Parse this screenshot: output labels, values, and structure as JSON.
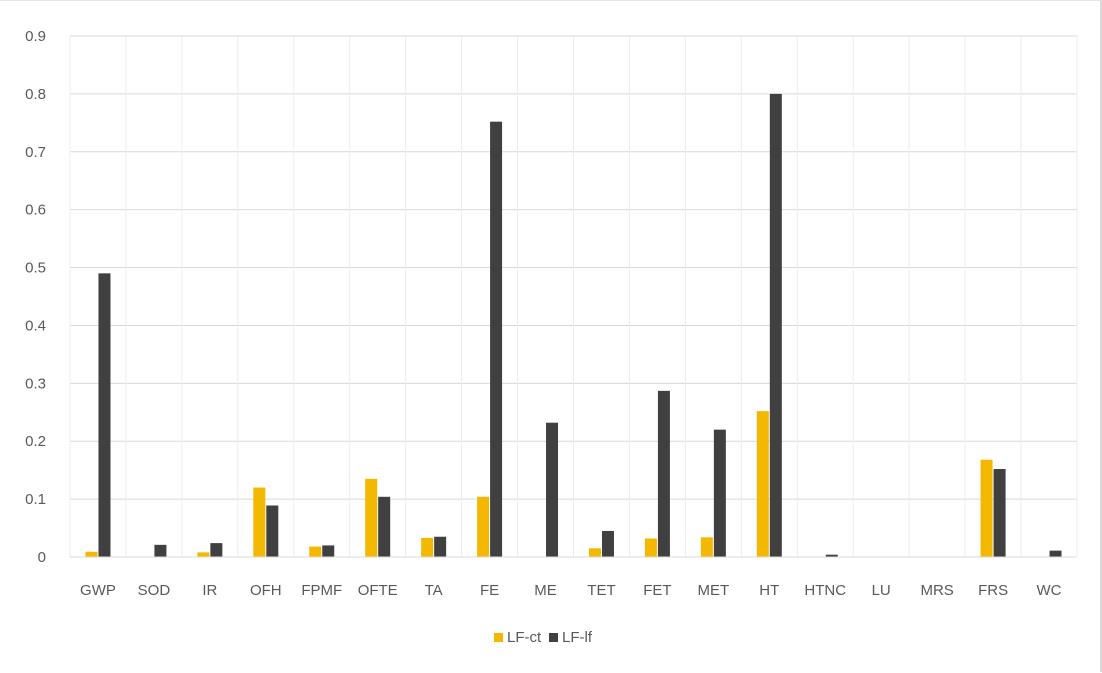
{
  "chart_data": {
    "type": "bar",
    "title": "",
    "xlabel": "",
    "ylabel": "",
    "ylim": [
      0,
      0.9
    ],
    "yticks": [
      "0",
      "0.1",
      "0.2",
      "0.3",
      "0.4",
      "0.5",
      "0.6",
      "0.7",
      "0.8",
      "0.9"
    ],
    "grid": true,
    "legend_position": "bottom",
    "categories": [
      "GWP",
      "SOD",
      "IR",
      "OFH",
      "FPMF",
      "OFTE",
      "TA",
      "FE",
      "ME",
      "TET",
      "FET",
      "MET",
      "HT",
      "HTNC",
      "LU",
      "MRS",
      "FRS",
      "WC"
    ],
    "series": [
      {
        "name": "LF-ct",
        "color": "#f5b800",
        "values": [
          0.009,
          0.0,
          0.008,
          0.12,
          0.018,
          0.135,
          0.033,
          0.104,
          0.0,
          0.015,
          0.032,
          0.034,
          0.252,
          0.0,
          0.0,
          0.0,
          0.168,
          0.0
        ]
      },
      {
        "name": "LF-lf",
        "color": "#404040",
        "values": [
          0.49,
          0.021,
          0.024,
          0.089,
          0.02,
          0.104,
          0.035,
          0.752,
          0.232,
          0.045,
          0.287,
          0.22,
          0.8,
          0.004,
          0.0,
          0.0,
          0.152,
          0.011
        ]
      }
    ]
  }
}
